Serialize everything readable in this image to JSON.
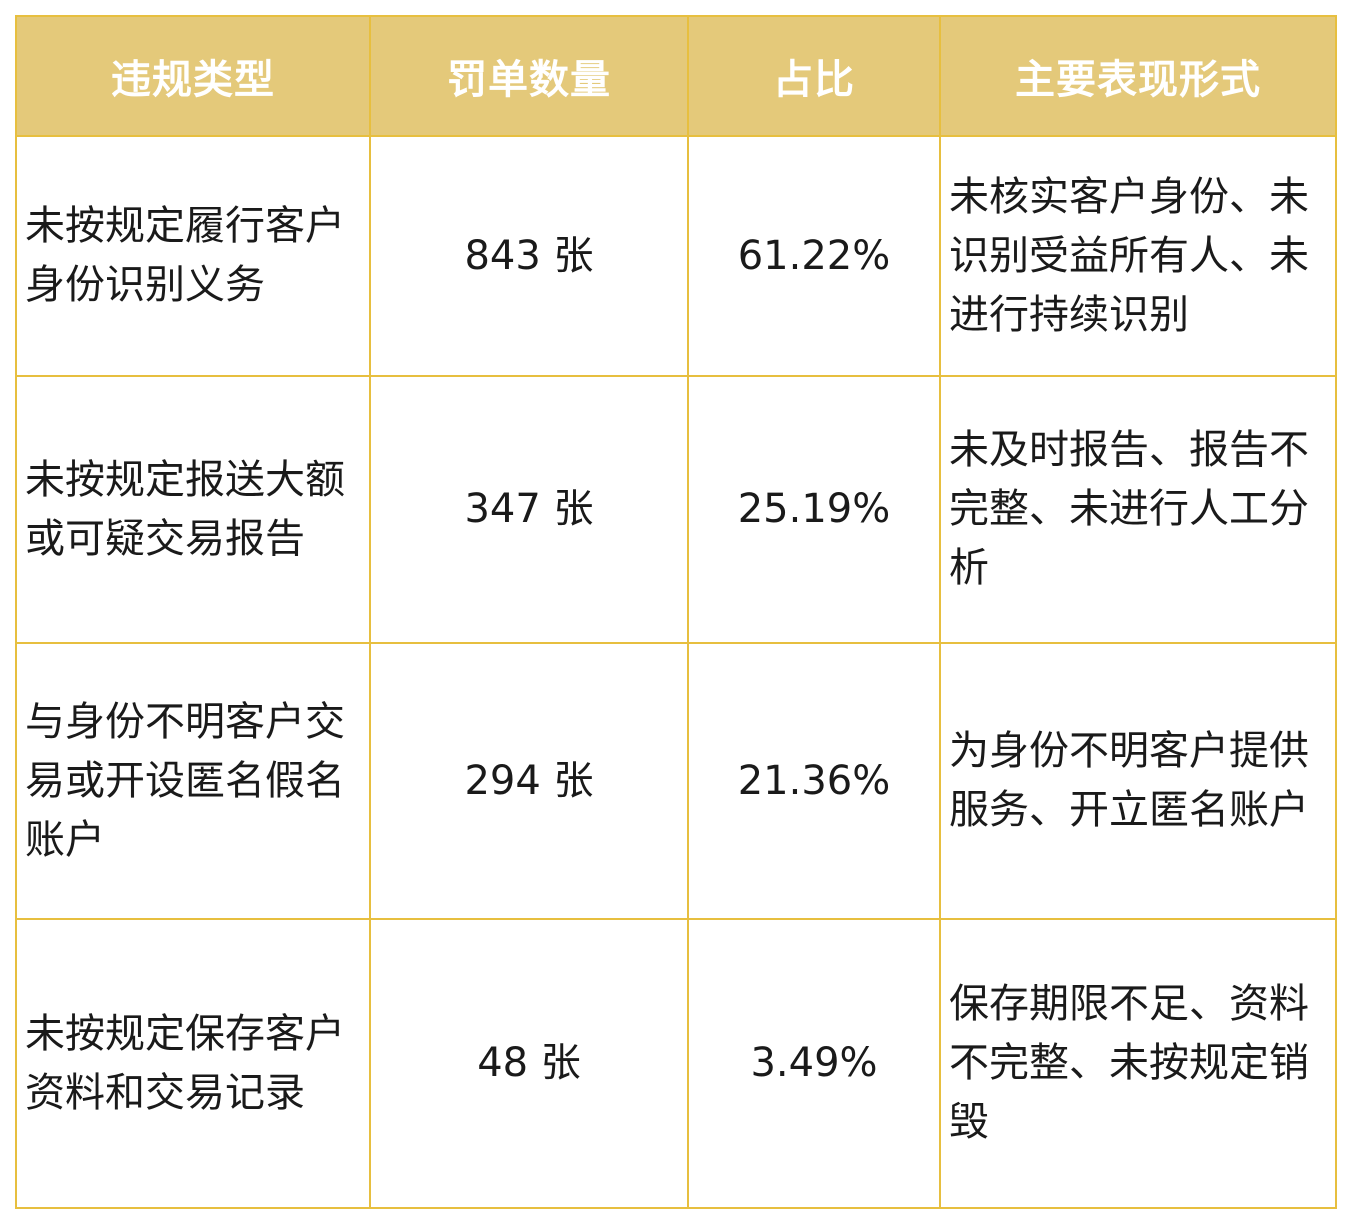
{
  "table": {
    "headers": [
      "违规类型",
      "罚单数量",
      "占比",
      "主要表现形式"
    ],
    "rows": [
      {
        "type": "未按规定履行客户身份识别义务",
        "count": "843 张",
        "percent": "61.22%",
        "form": "未核实客户身份、未识别受益所有人、未进行持续识别"
      },
      {
        "type": "未按规定报送大额或可疑交易报告",
        "count": "347 张",
        "percent": "25.19%",
        "form": "未及时报告、报告不完整、未进行人工分析"
      },
      {
        "type": "与身份不明客户交易或开设匿名假名账户",
        "count": "294 张",
        "percent": "21.36%",
        "form": "为身份不明客户提供服务、开立匿名账户"
      },
      {
        "type": "未按规定保存客户资料和交易记录",
        "count": "48 张",
        "percent": "3.49%",
        "form": "保存期限不足、资料不完整、未按规定销毁"
      }
    ]
  },
  "colors": {
    "header_bg": "#e4c97a",
    "header_text": "#ffffff",
    "border": "#e7bf3f",
    "body_text": "#1a1a1a"
  }
}
